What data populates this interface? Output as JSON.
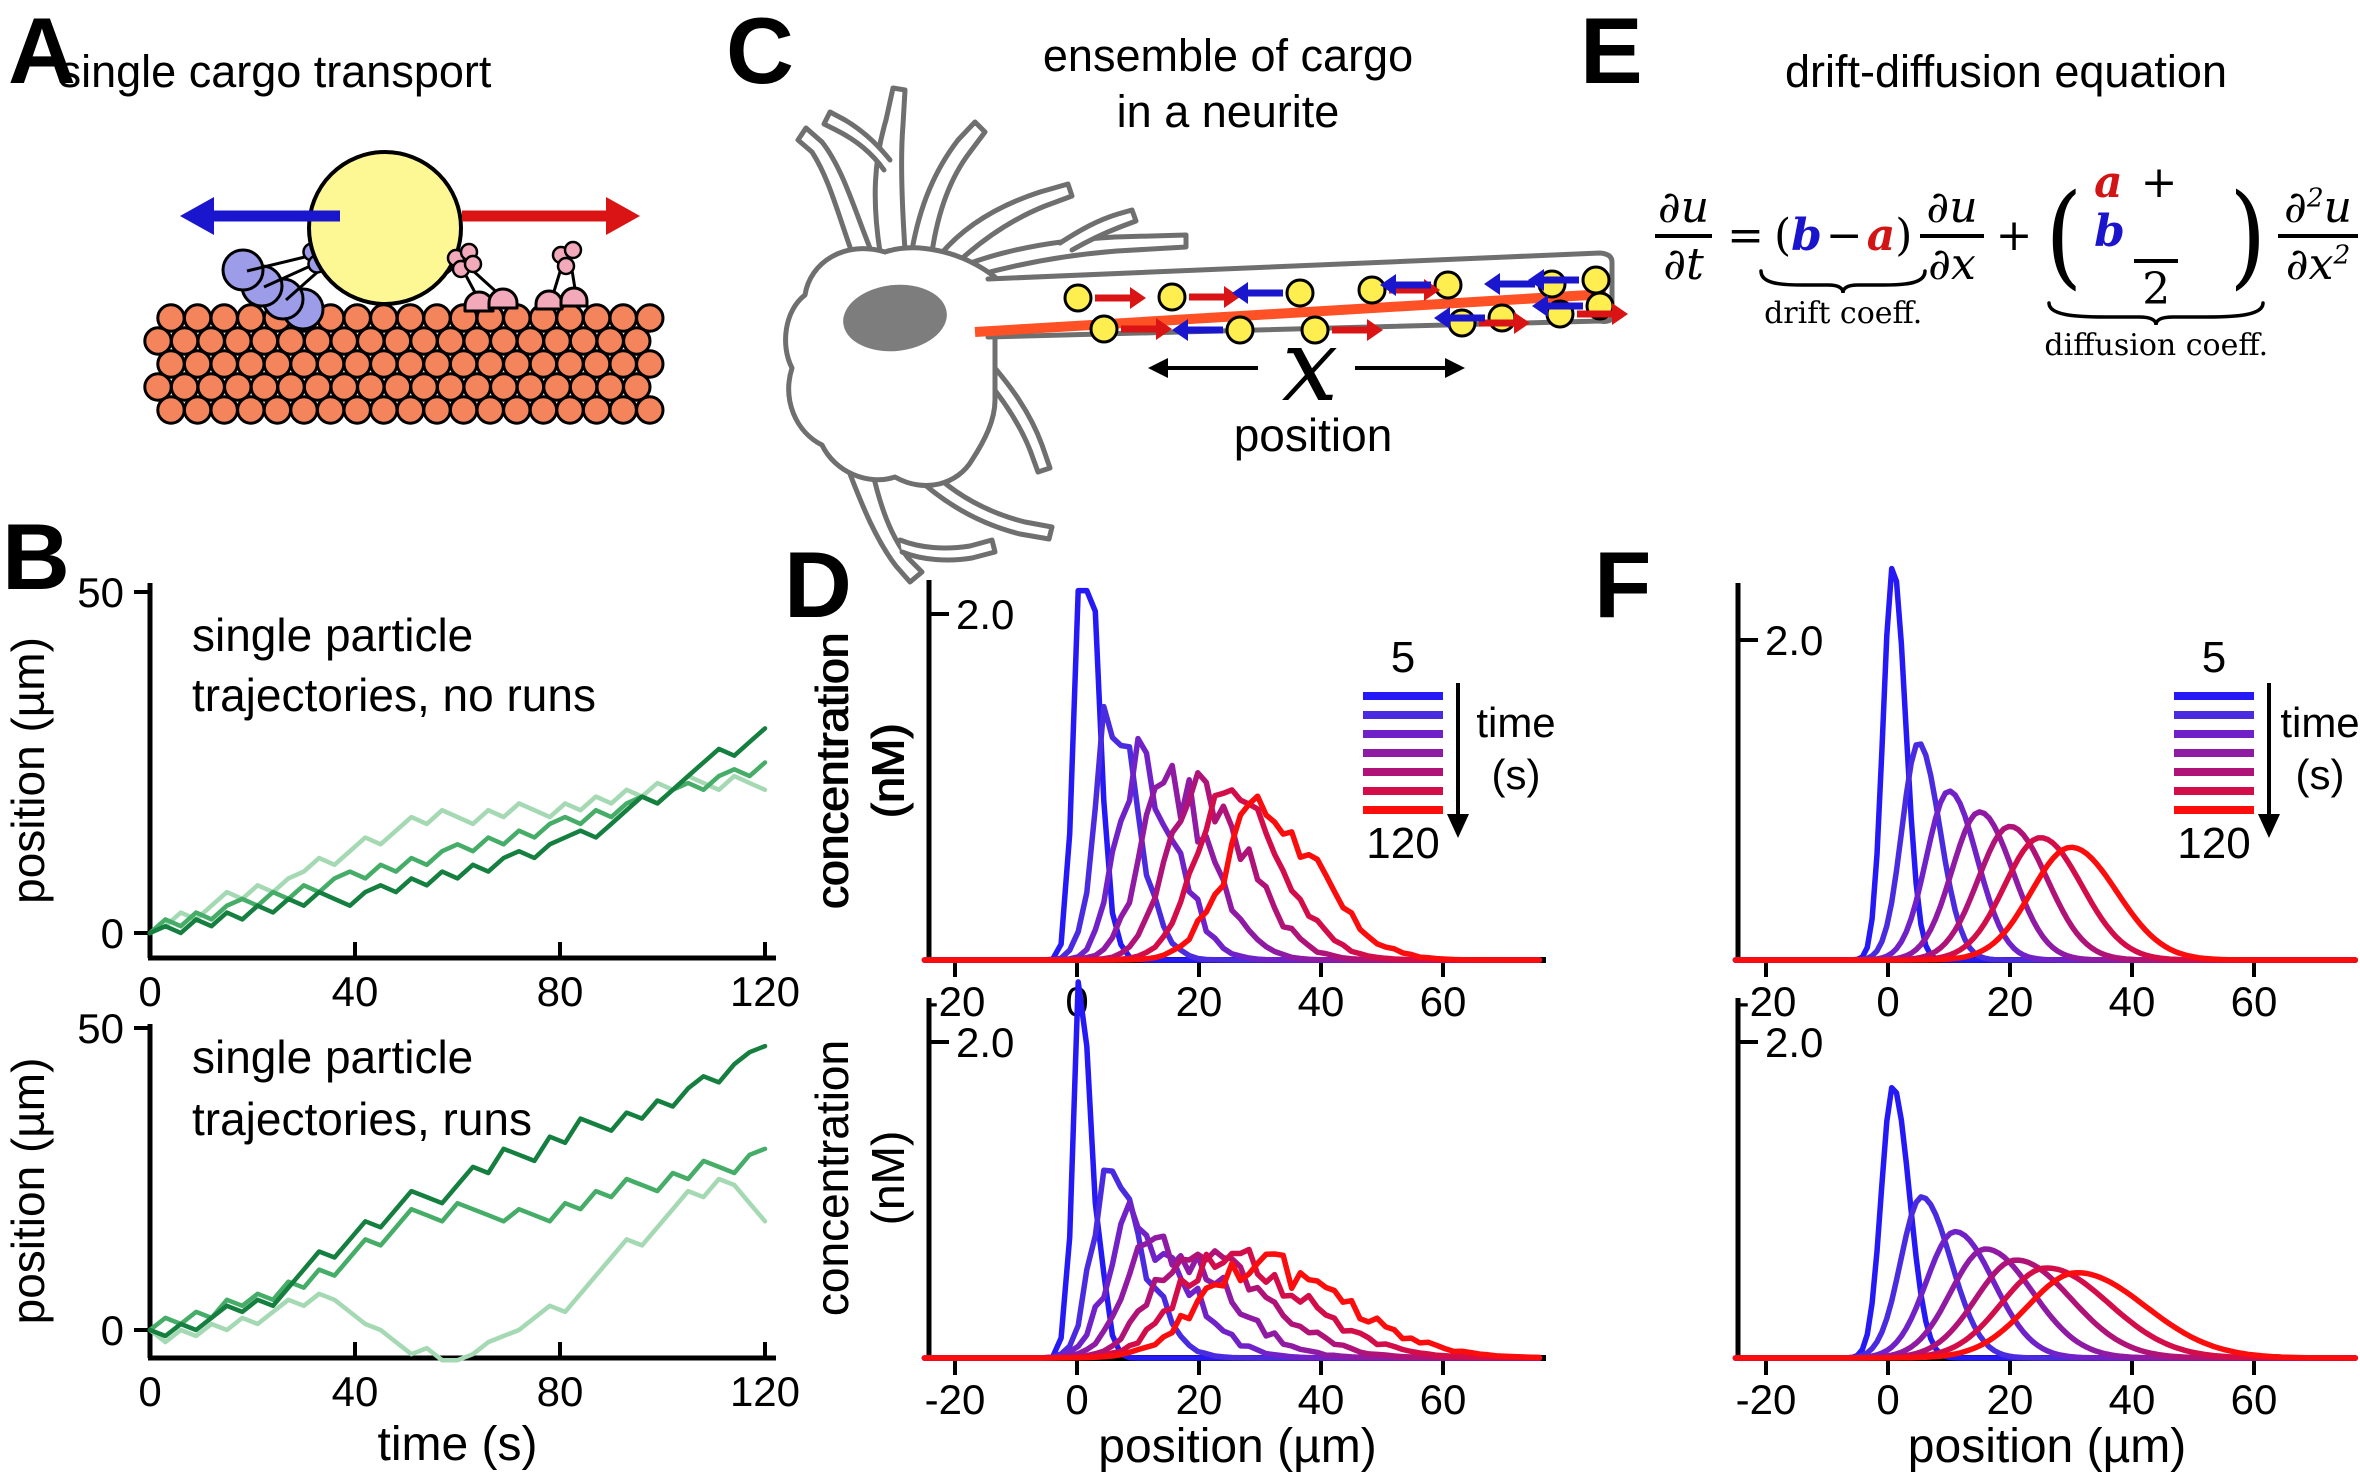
{
  "figure": {
    "panel_letters": {
      "A": "A",
      "B": "B",
      "C": "C",
      "D": "D",
      "E": "E",
      "F": "F"
    },
    "panelA": {
      "title": "single cargo transport"
    },
    "panelC": {
      "title_line1": "ensemble of cargo",
      "title_line2": "in a neurite",
      "x_symbol": "x",
      "x_caption": "position"
    },
    "panelE": {
      "title": "drift-diffusion equation",
      "eq": {
        "du1": "∂u",
        "dt": "∂t",
        "equals": "=",
        "lp1": "(",
        "b1": "b",
        "minus": "−",
        "a1": "a",
        "rp1": ")",
        "du2": "∂u",
        "dx1": "∂x",
        "plus": "+",
        "lp2": "(",
        "a2": "a",
        "plus2": "+",
        "b2": "b",
        "two": "2",
        "rp2": ")",
        "partial": "∂",
        "sup2a": "2",
        "u": "u",
        "dx2": "∂x",
        "sup2b": "2",
        "drift_label": "drift coeff.",
        "diffusion_label": "diffusion coeff."
      }
    },
    "colors": {
      "cargo_yellow": "#fdf894",
      "microtubule_orange": "#f3845c",
      "dynein_purple": "#9c9ce8",
      "kinesin_pink": "#f2a9b9",
      "arrow_blue": "#1a16cd",
      "arrow_red": "#da1414",
      "neuron_gray": "#6f6f6f",
      "nucleus_gray": "#7d7d7d",
      "axon_line_orange": "#ff5126",
      "axis_black": "#000000"
    }
  },
  "chart_data": [
    {
      "id": "B_top",
      "type": "line",
      "annotation_line1": "single particle",
      "annotation_line2": "trajectories, no runs",
      "xlabel": null,
      "ylabel": "position (µm)",
      "xlim": [
        0,
        122
      ],
      "ylim": [
        -5,
        50
      ],
      "xticks": [
        0,
        40,
        80,
        120
      ],
      "yticks": [
        0,
        50
      ],
      "x_step_s": 3,
      "series": [
        {
          "name": "trajectory-dark",
          "color": "#157f40",
          "y": [
            0,
            1,
            0,
            2,
            1,
            3,
            2,
            4,
            3,
            5,
            4,
            6,
            5,
            4,
            6,
            7,
            6,
            8,
            7,
            9,
            8,
            10,
            9,
            11,
            12,
            11,
            13,
            14,
            15,
            14,
            16,
            18,
            20,
            19,
            21,
            23,
            25,
            27,
            26,
            28,
            30
          ]
        },
        {
          "name": "trajectory-medium",
          "color": "#46ad68",
          "y": [
            0,
            2,
            1,
            3,
            2,
            4,
            5,
            4,
            6,
            5,
            7,
            6,
            8,
            9,
            8,
            10,
            9,
            11,
            10,
            12,
            13,
            12,
            14,
            13,
            15,
            14,
            16,
            17,
            16,
            18,
            17,
            19,
            20,
            19,
            21,
            22,
            21,
            23,
            24,
            23,
            25
          ]
        },
        {
          "name": "trajectory-light",
          "color": "#a5d9b3",
          "y": [
            0,
            1,
            3,
            2,
            4,
            6,
            5,
            7,
            6,
            8,
            9,
            11,
            10,
            12,
            14,
            13,
            15,
            17,
            16,
            18,
            17,
            16,
            18,
            17,
            19,
            18,
            17,
            19,
            18,
            20,
            19,
            21,
            20,
            22,
            21,
            23,
            22,
            21,
            23,
            22,
            21
          ]
        }
      ]
    },
    {
      "id": "B_bottom",
      "type": "line",
      "annotation_line1": "single particle",
      "annotation_line2": "trajectories, runs",
      "xlabel": "time (s)",
      "ylabel": "position (µm)",
      "xlim": [
        0,
        122
      ],
      "ylim": [
        -5,
        50
      ],
      "xticks": [
        0,
        40,
        80,
        120
      ],
      "yticks": [
        0,
        50
      ],
      "x_step_s": 3,
      "series": [
        {
          "name": "trajectory-dark",
          "color": "#157f40",
          "y": [
            0,
            -1,
            1,
            0,
            2,
            4,
            3,
            5,
            4,
            7,
            10,
            13,
            12,
            15,
            18,
            17,
            20,
            23,
            22,
            21,
            24,
            27,
            26,
            30,
            29,
            28,
            32,
            31,
            35,
            34,
            33,
            36,
            35,
            38,
            37,
            40,
            42,
            41,
            44,
            46,
            47
          ]
        },
        {
          "name": "trajectory-medium",
          "color": "#46ad68",
          "y": [
            0,
            2,
            1,
            3,
            2,
            5,
            4,
            6,
            5,
            8,
            7,
            10,
            9,
            12,
            15,
            14,
            17,
            20,
            19,
            18,
            21,
            20,
            19,
            18,
            20,
            19,
            18,
            21,
            20,
            23,
            22,
            25,
            24,
            23,
            26,
            25,
            28,
            27,
            26,
            29,
            30
          ]
        },
        {
          "name": "trajectory-light",
          "color": "#a5d9b3",
          "y": [
            0,
            -2,
            0,
            -1,
            1,
            0,
            2,
            1,
            3,
            5,
            4,
            6,
            5,
            3,
            1,
            0,
            -2,
            -4,
            -3,
            -5,
            -5,
            -4,
            -2,
            -1,
            0,
            2,
            4,
            3,
            6,
            9,
            12,
            15,
            14,
            17,
            20,
            23,
            22,
            25,
            24,
            21,
            18
          ]
        }
      ]
    },
    {
      "id": "D_top",
      "type": "line",
      "style": "noisy-simulation",
      "xlabel": null,
      "ylabel_line1": "concentration",
      "ylabel_line2": "(nM)",
      "xlim": [
        -25,
        75
      ],
      "ylim": [
        0,
        2.2
      ],
      "xticks": [
        -20,
        0,
        20,
        40,
        60
      ],
      "ytick_value": 2.0,
      "ytick_label": "2.0",
      "legend": {
        "top": "5",
        "bottom": "120",
        "label_line1": "time",
        "label_line2": "(s)"
      },
      "series": [
        {
          "time_s": 5,
          "color": "#2519f5",
          "peak_x": 1,
          "peak_nM": 2.5,
          "sigma_l": 1.4,
          "sigma_r": 2.4,
          "noise": 0.1,
          "clip_nM": 2.16
        },
        {
          "time_s": 20,
          "color": "#4b2be0",
          "peak_x": 5.5,
          "peak_nM": 1.38,
          "sigma_l": 2.6,
          "sigma_r": 4.5,
          "noise": 0.08
        },
        {
          "time_s": 40,
          "color": "#7022c8",
          "peak_x": 10,
          "peak_nM": 1.15,
          "sigma_l": 3.5,
          "sigma_r": 6.0,
          "noise": 0.08
        },
        {
          "time_s": 60,
          "color": "#8f1aa4",
          "peak_x": 15,
          "peak_nM": 1.05,
          "sigma_l": 4.5,
          "sigma_r": 7.0,
          "noise": 0.08
        },
        {
          "time_s": 80,
          "color": "#b01378",
          "peak_x": 20,
          "peak_nM": 0.98,
          "sigma_l": 5.0,
          "sigma_r": 8.0,
          "noise": 0.07
        },
        {
          "time_s": 100,
          "color": "#d30d4a",
          "peak_x": 25,
          "peak_nM": 0.92,
          "sigma_l": 5.5,
          "sigma_r": 8.5,
          "noise": 0.07
        },
        {
          "time_s": 120,
          "color": "#fb0d0d",
          "peak_x": 30,
          "peak_nM": 0.85,
          "sigma_l": 6.0,
          "sigma_r": 9.5,
          "noise": 0.07
        }
      ]
    },
    {
      "id": "D_bottom",
      "type": "line",
      "style": "noisy-simulation",
      "xlabel": "position (µm)",
      "ylabel_line1": "concentration",
      "ylabel_line2": "(nM)",
      "xlim": [
        -25,
        75
      ],
      "ylim": [
        0,
        2.3
      ],
      "xticks": [
        -20,
        0,
        20,
        40,
        60
      ],
      "ytick_value": 2.0,
      "ytick_label": "2.0",
      "legend": null,
      "series": [
        {
          "time_s": 5,
          "color": "#2519f5",
          "peak_x": 0.5,
          "peak_nM": 2.25,
          "sigma_l": 1.3,
          "sigma_r": 2.2,
          "noise": 0.1
        },
        {
          "time_s": 20,
          "color": "#4b2be0",
          "peak_x": 5,
          "peak_nM": 1.05,
          "sigma_l": 2.8,
          "sigma_r": 6.0,
          "noise": 0.09
        },
        {
          "time_s": 40,
          "color": "#7022c8",
          "peak_x": 9,
          "peak_nM": 0.85,
          "sigma_l": 4.0,
          "sigma_r": 8.5,
          "noise": 0.09
        },
        {
          "time_s": 60,
          "color": "#8f1aa4",
          "peak_x": 13,
          "peak_nM": 0.74,
          "sigma_l": 5.0,
          "sigma_r": 10.5,
          "noise": 0.09
        },
        {
          "time_s": 80,
          "color": "#b01378",
          "peak_x": 18,
          "peak_nM": 0.68,
          "sigma_l": 6.0,
          "sigma_r": 12.0,
          "noise": 0.08
        },
        {
          "time_s": 100,
          "color": "#d30d4a",
          "peak_x": 23,
          "peak_nM": 0.63,
          "sigma_l": 7.0,
          "sigma_r": 13.5,
          "noise": 0.08
        },
        {
          "time_s": 120,
          "color": "#fb0d0d",
          "peak_x": 28,
          "peak_nM": 0.6,
          "sigma_l": 8.0,
          "sigma_r": 15.0,
          "noise": 0.08
        }
      ]
    },
    {
      "id": "F_top",
      "type": "line",
      "style": "smooth-solution",
      "xlabel": null,
      "ylabel_line1": "concentration",
      "ylabel_line2": "(nM)",
      "xlim": [
        -25,
        75
      ],
      "ylim": [
        0,
        2.3
      ],
      "xticks": [
        -20,
        0,
        20,
        40,
        60
      ],
      "ytick_value": 2.0,
      "ytick_label": "2.0",
      "legend": {
        "top": "5",
        "bottom": "120",
        "label_line1": "time",
        "label_line2": "(s)"
      },
      "series": [
        {
          "time_s": 5,
          "color": "#2519f5",
          "peak_x": 0.8,
          "peak_nM": 2.45,
          "sigma_l": 1.6,
          "sigma_r": 2.1,
          "noise": 0
        },
        {
          "time_s": 20,
          "color": "#4b2be0",
          "peak_x": 5,
          "peak_nM": 1.35,
          "sigma_l": 2.7,
          "sigma_r": 3.5,
          "noise": 0
        },
        {
          "time_s": 40,
          "color": "#7022c8",
          "peak_x": 10,
          "peak_nM": 1.05,
          "sigma_l": 3.7,
          "sigma_r": 4.6,
          "noise": 0
        },
        {
          "time_s": 60,
          "color": "#8f1aa4",
          "peak_x": 15,
          "peak_nM": 0.92,
          "sigma_l": 4.5,
          "sigma_r": 5.4,
          "noise": 0
        },
        {
          "time_s": 80,
          "color": "#b01378",
          "peak_x": 20,
          "peak_nM": 0.83,
          "sigma_l": 5.2,
          "sigma_r": 6.1,
          "noise": 0
        },
        {
          "time_s": 100,
          "color": "#d30d4a",
          "peak_x": 25,
          "peak_nM": 0.76,
          "sigma_l": 5.9,
          "sigma_r": 6.8,
          "noise": 0
        },
        {
          "time_s": 120,
          "color": "#fb0d0d",
          "peak_x": 30,
          "peak_nM": 0.7,
          "sigma_l": 6.5,
          "sigma_r": 7.5,
          "noise": 0
        }
      ]
    },
    {
      "id": "F_bottom",
      "type": "line",
      "style": "smooth-solution",
      "xlabel": "position (µm)",
      "ylabel_line1": "concentration",
      "ylabel_line2": "(nM)",
      "xlim": [
        -25,
        75
      ],
      "ylim": [
        0,
        2.3
      ],
      "xticks": [
        -20,
        0,
        20,
        40,
        60
      ],
      "ytick_value": 2.0,
      "ytick_label": "2.0",
      "legend": null,
      "series": [
        {
          "time_s": 5,
          "color": "#2519f5",
          "peak_x": 0.8,
          "peak_nM": 1.72,
          "sigma_l": 1.9,
          "sigma_r": 2.7,
          "noise": 0
        },
        {
          "time_s": 20,
          "color": "#4b2be0",
          "peak_x": 5.5,
          "peak_nM": 1.02,
          "sigma_l": 3.4,
          "sigma_r": 4.8,
          "noise": 0
        },
        {
          "time_s": 40,
          "color": "#7022c8",
          "peak_x": 11,
          "peak_nM": 0.8,
          "sigma_l": 4.7,
          "sigma_r": 6.3,
          "noise": 0
        },
        {
          "time_s": 60,
          "color": "#8f1aa4",
          "peak_x": 16,
          "peak_nM": 0.69,
          "sigma_l": 5.7,
          "sigma_r": 7.7,
          "noise": 0
        },
        {
          "time_s": 80,
          "color": "#b01378",
          "peak_x": 21,
          "peak_nM": 0.62,
          "sigma_l": 6.6,
          "sigma_r": 9.0,
          "noise": 0
        },
        {
          "time_s": 100,
          "color": "#d30d4a",
          "peak_x": 26,
          "peak_nM": 0.57,
          "sigma_l": 7.4,
          "sigma_r": 10.2,
          "noise": 0
        },
        {
          "time_s": 120,
          "color": "#fb0d0d",
          "peak_x": 31,
          "peak_nM": 0.54,
          "sigma_l": 8.1,
          "sigma_r": 11.2,
          "noise": 0
        }
      ]
    }
  ]
}
